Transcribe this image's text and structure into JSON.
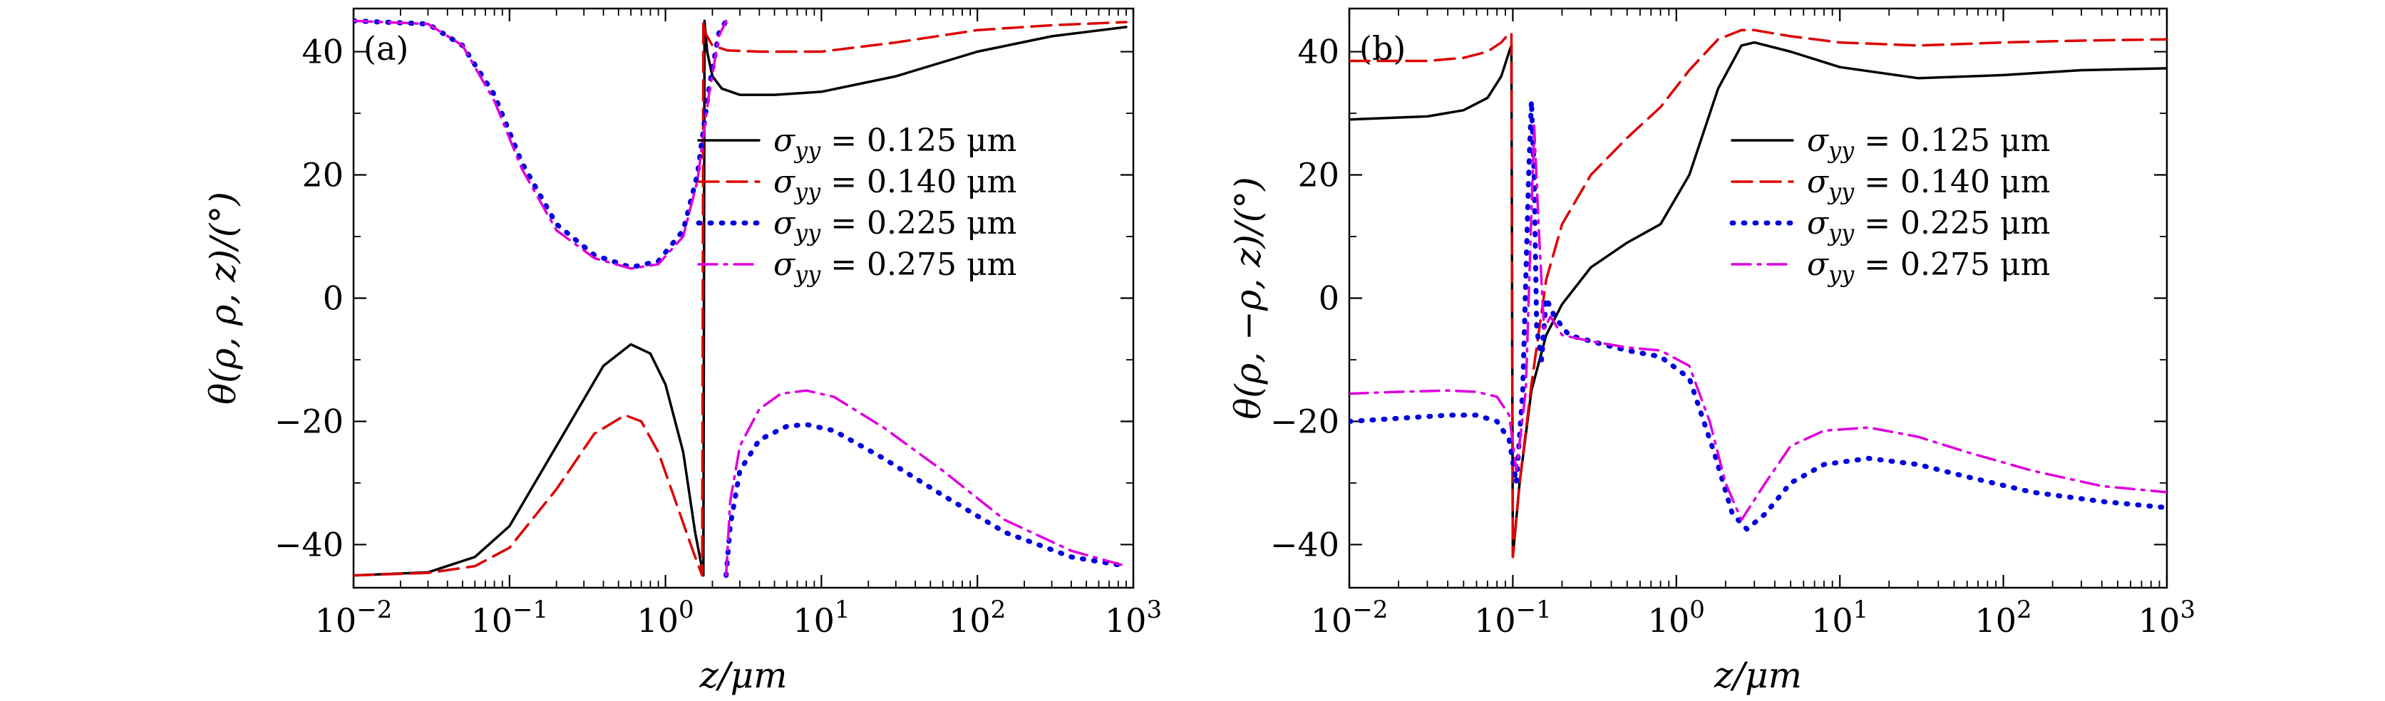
{
  "chart_data": [
    {
      "type": "line",
      "panel_label": "(a)",
      "xlabel": "z/μm",
      "ylabel": "θ(ρ, ρ, z)/(°)",
      "xscale": "log",
      "xlim": [
        0.01,
        1000
      ],
      "ylim": [
        -47,
        47
      ],
      "xticks": [
        0.01,
        0.1,
        1,
        10,
        100,
        1000
      ],
      "xtick_labels": [
        "10−2",
        "10−1",
        "100",
        "101",
        "102",
        "103"
      ],
      "yticks": [
        -40,
        -20,
        0,
        20,
        40
      ],
      "ytick_labels": [
        "−40",
        "−20",
        "0",
        "20",
        "40"
      ],
      "legend_position": "center-right",
      "series": [
        {
          "name": "σyy = 0.125 μm",
          "color": "#000000",
          "dash": "solid",
          "x": [
            0.01,
            0.03,
            0.06,
            0.1,
            0.2,
            0.4,
            0.6,
            0.8,
            1.0,
            1.3,
            1.55,
            1.75,
            1.78,
            1.85,
            2.0,
            2.3,
            3,
            5,
            10,
            30,
            100,
            300,
            900
          ],
          "y": [
            -45,
            -44.5,
            -42,
            -37,
            -24,
            -11,
            -7.5,
            -9,
            -14,
            -25,
            -38,
            -45,
            45,
            40,
            36,
            34,
            33,
            33,
            33.5,
            36,
            40,
            42.5,
            44
          ]
        },
        {
          "name": "σyy = 0.140 μm",
          "color": "#dd0000",
          "dash": "long-dash",
          "x": [
            0.01,
            0.03,
            0.06,
            0.1,
            0.2,
            0.35,
            0.55,
            0.7,
            0.9,
            1.2,
            1.5,
            1.72,
            1.75,
            1.8,
            2.0,
            2.5,
            4,
            10,
            30,
            100,
            300,
            900
          ],
          "y": [
            -45,
            -44.6,
            -43.5,
            -40.5,
            -31,
            -22,
            -19,
            -20,
            -25,
            -34,
            -41,
            -45,
            45,
            43,
            41,
            40.2,
            40,
            40,
            41.5,
            43.5,
            44.3,
            44.8
          ]
        },
        {
          "name": "σyy = 0.225 μm",
          "color": "#0000dd",
          "dash": "dotted",
          "x_upper": [
            0.01,
            0.03,
            0.05,
            0.08,
            0.12,
            0.2,
            0.35,
            0.6,
            0.9,
            1.3,
            1.6,
            1.9,
            2.2,
            2.45
          ],
          "y_upper": [
            45,
            44.5,
            41,
            33,
            22,
            12,
            7,
            5,
            6,
            11,
            20,
            34,
            43,
            45
          ],
          "x_lower": [
            2.45,
            2.6,
            3,
            4,
            6,
            8,
            12,
            25,
            60,
            150,
            400,
            900
          ],
          "y_lower": [
            -45,
            -37,
            -28,
            -23,
            -20.8,
            -20.5,
            -21.5,
            -26,
            -32,
            -38,
            -42,
            -43.5
          ]
        },
        {
          "name": "σyy = 0.275 μm",
          "color": "#dd00dd",
          "dash": "dash-dot",
          "x_upper": [
            0.01,
            0.03,
            0.05,
            0.08,
            0.12,
            0.2,
            0.35,
            0.6,
            0.9,
            1.3,
            1.6,
            1.9,
            2.2,
            2.45
          ],
          "y_upper": [
            45,
            44.5,
            41,
            32,
            21,
            11,
            6.5,
            4.8,
            5.5,
            10,
            19,
            33,
            42.5,
            45
          ],
          "x_lower": [
            2.45,
            2.6,
            3,
            4,
            5.5,
            8,
            12,
            25,
            60,
            150,
            400,
            900
          ],
          "y_lower": [
            -45,
            -33,
            -24,
            -18,
            -15.5,
            -15,
            -16,
            -21,
            -28,
            -36,
            -41,
            -43.5
          ]
        }
      ]
    },
    {
      "type": "line",
      "panel_label": "(b)",
      "xlabel": "z/μm",
      "ylabel": "θ(ρ, −ρ, z)/(°)",
      "xscale": "log",
      "xlim": [
        0.01,
        1000
      ],
      "ylim": [
        -47,
        47
      ],
      "xticks": [
        0.01,
        0.1,
        1,
        10,
        100,
        1000
      ],
      "xtick_labels": [
        "10−2",
        "10−1",
        "100",
        "101",
        "102",
        "103"
      ],
      "yticks": [
        -40,
        -20,
        0,
        20,
        40
      ],
      "ytick_labels": [
        "−40",
        "−20",
        "0",
        "20",
        "40"
      ],
      "legend_position": "center-right",
      "series": [
        {
          "name": "σyy = 0.125 μm",
          "color": "#000000",
          "dash": "solid",
          "x": [
            0.01,
            0.03,
            0.05,
            0.07,
            0.085,
            0.095,
            0.098,
            0.1,
            0.11,
            0.13,
            0.16,
            0.2,
            0.3,
            0.5,
            0.8,
            1.2,
            1.8,
            2.5,
            3,
            5,
            10,
            30,
            100,
            300,
            1000
          ],
          "y": [
            29,
            29.5,
            30.5,
            32.5,
            36,
            40,
            41,
            -42,
            -30,
            -15,
            -6,
            -1,
            5,
            9,
            12,
            20,
            34,
            41,
            41.5,
            40,
            37.5,
            35.7,
            36.2,
            37,
            37.3
          ]
        },
        {
          "name": "σyy = 0.140 μm",
          "color": "#dd0000",
          "dash": "long-dash",
          "x": [
            0.01,
            0.03,
            0.05,
            0.07,
            0.085,
            0.095,
            0.098,
            0.1,
            0.11,
            0.13,
            0.16,
            0.2,
            0.3,
            0.5,
            0.8,
            1.2,
            1.8,
            2.5,
            3,
            5,
            10,
            30,
            100,
            300,
            1000
          ],
          "y": [
            38.5,
            38.5,
            39,
            40,
            41.5,
            43,
            43,
            -42,
            -30,
            -14,
            3,
            12,
            20,
            26,
            31,
            37,
            42,
            43.5,
            43.5,
            42.5,
            41.5,
            41,
            41.5,
            41.8,
            42
          ]
        },
        {
          "name": "σyy = 0.225 μm",
          "color": "#0000dd",
          "dash": "dotted",
          "x": [
            0.01,
            0.02,
            0.04,
            0.06,
            0.08,
            0.095,
            0.105,
            0.115,
            0.125,
            0.13,
            0.135,
            0.14,
            0.15,
            0.16,
            0.18,
            0.22,
            0.3,
            0.5,
            0.8,
            1.2,
            1.7,
            2.2,
            2.7,
            3.5,
            5,
            8,
            15,
            30,
            60,
            150,
            400,
            1000
          ],
          "y": [
            -20,
            -19.5,
            -19,
            -19,
            -20,
            -23,
            -30,
            -15,
            20,
            32,
            20,
            -5,
            -10,
            0,
            -3,
            -6,
            -7,
            -8.5,
            -9.5,
            -13,
            -25,
            -35,
            -37.5,
            -35,
            -30,
            -27,
            -26,
            -27,
            -29,
            -31.5,
            -33,
            -34
          ]
        },
        {
          "name": "σyy = 0.275 μm",
          "color": "#dd00dd",
          "dash": "dash-dot",
          "x": [
            0.01,
            0.02,
            0.04,
            0.06,
            0.08,
            0.095,
            0.105,
            0.12,
            0.135,
            0.145,
            0.155,
            0.17,
            0.2,
            0.3,
            0.5,
            0.8,
            1.2,
            1.6,
            2.0,
            2.5,
            3.5,
            5,
            8,
            15,
            30,
            60,
            150,
            400,
            1000
          ],
          "y": [
            -15.5,
            -15.2,
            -15,
            -15.2,
            -16,
            -19,
            -28,
            -15,
            28,
            10,
            -5,
            -3,
            -6,
            -7,
            -8,
            -8.5,
            -11,
            -20,
            -30,
            -36,
            -30,
            -24,
            -21.5,
            -21,
            -22.5,
            -25,
            -28,
            -30.5,
            -31.5
          ]
        }
      ]
    }
  ]
}
